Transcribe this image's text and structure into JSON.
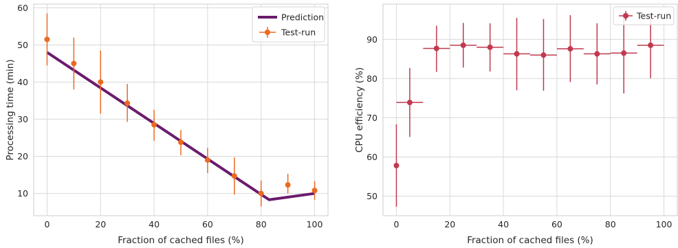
{
  "chart_data": [
    {
      "type": "line",
      "xlabel": "Fraction of cached files (%)",
      "ylabel": "Processing time (min)",
      "xlim": [
        -5,
        105
      ],
      "ylim": [
        4,
        61
      ],
      "xticks": [
        0,
        20,
        40,
        60,
        80,
        100
      ],
      "yticks": [
        10,
        20,
        30,
        40,
        50,
        60
      ],
      "grid": true,
      "legend_position": "top-right",
      "series": [
        {
          "name": "Prediction",
          "kind": "line",
          "color": "#6a1b6e",
          "x": [
            0,
            83,
            100
          ],
          "y": [
            48,
            8.3,
            10
          ]
        },
        {
          "name": "Test-run",
          "kind": "errorbar",
          "color": "#ea6a20",
          "x": [
            0,
            10,
            20,
            30,
            40,
            50,
            60,
            70,
            80,
            90,
            100
          ],
          "y": [
            51.5,
            45,
            40,
            34.3,
            28.5,
            23.8,
            19,
            14.7,
            10,
            12.3,
            10.8
          ],
          "yerr_low": [
            7.0,
            7.0,
            8.5,
            5.0,
            4.3,
            3.5,
            3.5,
            5.0,
            3.5,
            2.3,
            2.5
          ],
          "yerr_high": [
            7.0,
            7.0,
            8.5,
            5.2,
            4.0,
            3.3,
            3.3,
            5.0,
            3.5,
            3.0,
            2.5
          ]
        }
      ]
    },
    {
      "type": "scatter",
      "xlabel": "Fraction of cached files (%)",
      "ylabel": "CPU efficiency (%)",
      "xlim": [
        -5,
        105
      ],
      "ylim": [
        45,
        99
      ],
      "xticks": [
        0,
        20,
        40,
        60,
        80,
        100
      ],
      "yticks": [
        50,
        60,
        70,
        80,
        90
      ],
      "grid": true,
      "legend_position": "top-right",
      "series": [
        {
          "name": "Test-run",
          "kind": "errorbar",
          "color": "#c0394f",
          "x": [
            0,
            5,
            15,
            25,
            35,
            45,
            55,
            65,
            75,
            85,
            95
          ],
          "xerr": [
            0,
            5,
            5,
            5,
            5,
            5,
            5,
            5,
            5,
            5,
            5
          ],
          "y": [
            57.8,
            73.9,
            87.7,
            88.5,
            88,
            86.3,
            86,
            87.6,
            86.3,
            86.5,
            88.5
          ],
          "yerr_low": [
            10.5,
            8.8,
            6.0,
            5.7,
            6.2,
            9.3,
            9.1,
            8.5,
            7.8,
            10.3,
            8.4
          ],
          "yerr_high": [
            10.5,
            8.8,
            5.8,
            5.7,
            6.1,
            9.2,
            9.2,
            8.6,
            7.8,
            10.3,
            8.4
          ]
        }
      ]
    }
  ]
}
